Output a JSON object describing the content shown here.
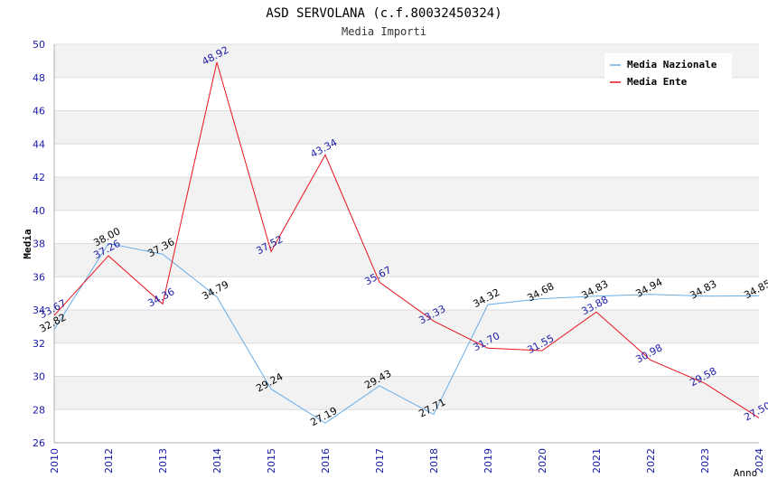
{
  "chart_data": {
    "type": "line",
    "title": "ASD SERVOLANA (c.f.80032450324)",
    "subtitle": "Media Importi",
    "xlabel": "Anno",
    "ylabel": "Media",
    "categories": [
      "2010",
      "2012",
      "2013",
      "2014",
      "2015",
      "2016",
      "2017",
      "2018",
      "2019",
      "2020",
      "2021",
      "2022",
      "2023",
      "2024"
    ],
    "ylim": [
      26,
      50
    ],
    "yticks": [
      "26",
      "28",
      "30",
      "32",
      "34",
      "36",
      "38",
      "40",
      "42",
      "44",
      "46",
      "48",
      "50"
    ],
    "grid": true,
    "legend_position": "top-right",
    "series": [
      {
        "name": "Media Nazionale",
        "color": "#6aaee8",
        "values": [
          32.82,
          38.0,
          37.36,
          34.79,
          29.24,
          27.19,
          29.43,
          27.71,
          34.32,
          34.68,
          34.83,
          34.94,
          34.83,
          34.85
        ],
        "labels": [
          "32.82",
          "38.00",
          "37.36",
          "34.79",
          "29.24",
          "27.19",
          "29.43",
          "27.71",
          "34.32",
          "34.68",
          "34.83",
          "34.94",
          "34.83",
          "34.85"
        ]
      },
      {
        "name": "Media Ente",
        "color": "#e8141e",
        "values": [
          33.67,
          37.26,
          34.36,
          48.92,
          37.52,
          43.34,
          35.67,
          33.33,
          31.7,
          31.55,
          33.88,
          30.98,
          29.58,
          27.5
        ],
        "labels": [
          "33.67",
          "37.26",
          "34.36",
          "48.92",
          "37.52",
          "43.34",
          "35.67",
          "33.33",
          "31.70",
          "31.55",
          "33.88",
          "30.98",
          "29.58",
          "27.50"
        ]
      }
    ]
  }
}
